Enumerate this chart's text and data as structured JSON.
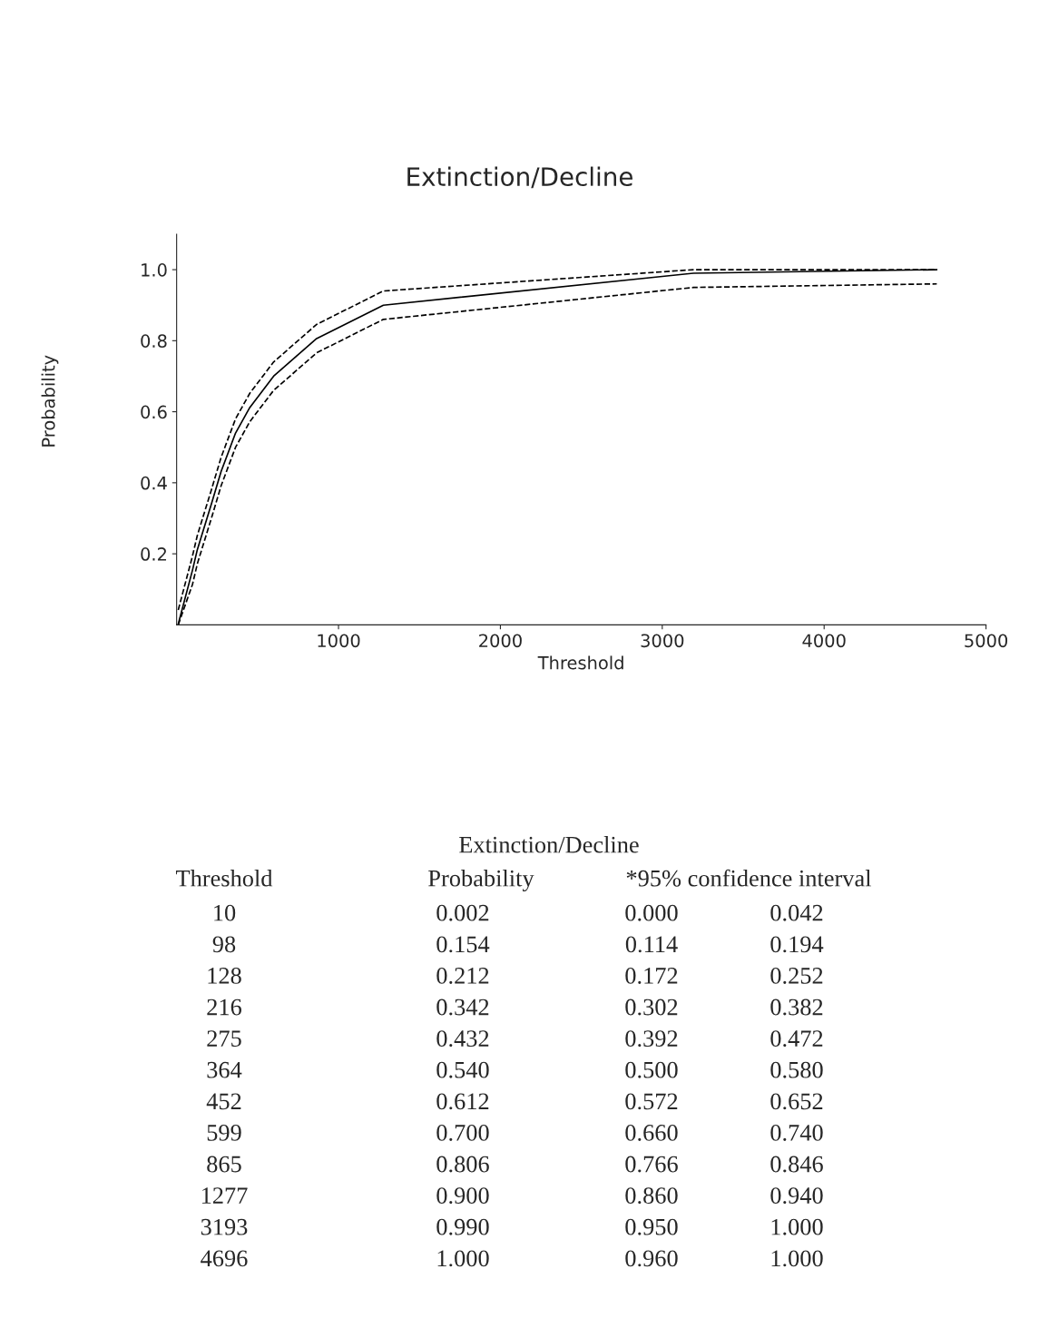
{
  "chart_data": [
    {
      "type": "line",
      "title": "Extinction/Decline",
      "xlabel": "Threshold",
      "ylabel": "Probability",
      "x": [
        10,
        98,
        128,
        216,
        275,
        364,
        452,
        599,
        865,
        1277,
        3193,
        4696
      ],
      "series": [
        {
          "color": "#000000",
          "line_style": "solid",
          "values": [
            0.002,
            0.154,
            0.212,
            0.342,
            0.432,
            0.54,
            0.612,
            0.7,
            0.806,
            0.9,
            0.99,
            1.0
          ]
        },
        {
          "color": "#000000",
          "line_style": "dashed",
          "values": [
            0.0,
            0.114,
            0.172,
            0.302,
            0.392,
            0.5,
            0.572,
            0.66,
            0.766,
            0.86,
            0.95,
            0.96
          ]
        },
        {
          "color": "#000000",
          "line_style": "dashed",
          "values": [
            0.042,
            0.194,
            0.252,
            0.382,
            0.472,
            0.58,
            0.652,
            0.74,
            0.846,
            0.94,
            1.0,
            1.0
          ]
        }
      ],
      "xlim": [
        0,
        5000
      ],
      "ylim": [
        0,
        1.1
      ],
      "xticks": [
        1000,
        2000,
        3000,
        4000,
        5000
      ],
      "yticks": [
        0.2,
        0.4,
        0.6,
        0.8,
        {
          "value": 1.0,
          "label": "1.0"
        }
      ],
      "grid": false,
      "legend": false,
      "marker": "none"
    },
    {
      "type": "other",
      "title": "Extinction/Decline",
      "annotations": [
        "Threshold",
        "Probability",
        "*95% confidence interval",
        "10",
        "0.002",
        "0.000",
        "0.042",
        "98",
        "0.154",
        "0.114",
        "0.194",
        "128",
        "0.212",
        "0.172",
        "0.252",
        "216",
        "0.342",
        "0.302",
        "0.382",
        "275",
        "0.432",
        "0.392",
        "0.472",
        "364",
        "0.540",
        "0.500",
        "0.580",
        "452",
        "0.612",
        "0.572",
        "0.652",
        "599",
        "0.700",
        "0.660",
        "0.740",
        "865",
        "0.806",
        "0.766",
        "0.846",
        "1277",
        "0.900",
        "0.860",
        "0.940",
        "3193",
        "0.990",
        "0.950",
        "1.000",
        "4696",
        "1.000",
        "0.960",
        "1.000"
      ]
    }
  ]
}
